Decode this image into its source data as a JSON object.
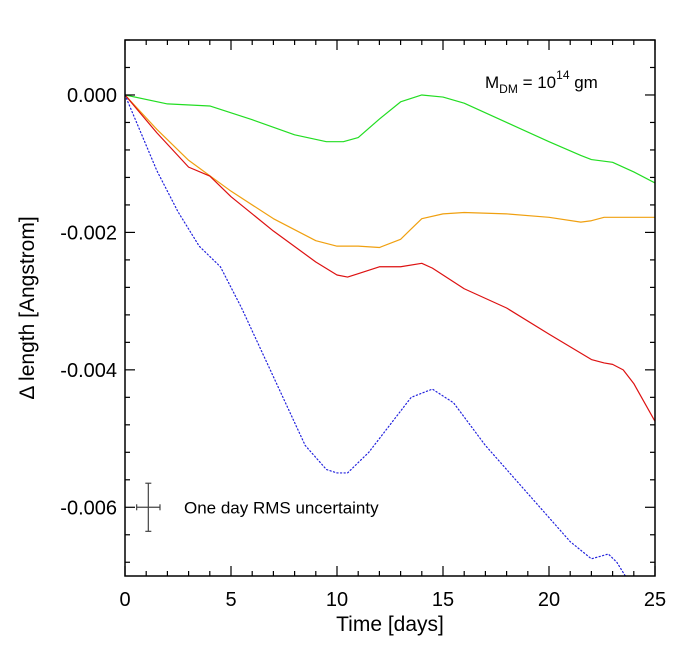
{
  "chart_data": {
    "type": "line",
    "xlabel": "Time [days]",
    "ylabel": "Δ length [Angstrom]",
    "xlim": [
      0,
      25
    ],
    "ylim": [
      -0.007,
      0.0008
    ],
    "x_ticks": [
      0,
      5,
      10,
      15,
      20,
      25
    ],
    "x_tick_labels": [
      "0",
      "5",
      "10",
      "15",
      "20",
      "25"
    ],
    "y_ticks": [
      0.0,
      -0.002,
      -0.004,
      -0.006
    ],
    "y_tick_labels": [
      "0.000",
      "-0.002",
      "-0.004",
      "-0.006"
    ],
    "x_minor_step": 1,
    "y_minor_step": 0.0004,
    "grid": false,
    "legend": "none",
    "mass_annotation": {
      "symbol": "M",
      "subscript": "DM",
      "equals": " = 10",
      "exponent": "14",
      "unit": " gm"
    },
    "error_bar_label": "One day RMS uncertainty",
    "error_bar": {
      "x": 1.1,
      "y": -0.006,
      "x_half_width": 0.55,
      "y_half_width": 0.00035
    },
    "series": [
      {
        "color": "#22dd22",
        "style": "solid",
        "points": [
          [
            0,
            0.0
          ],
          [
            2,
            -0.00013
          ],
          [
            4,
            -0.00016
          ],
          [
            6,
            -0.00036
          ],
          [
            8,
            -0.00058
          ],
          [
            9.5,
            -0.00068
          ],
          [
            10.3,
            -0.00068
          ],
          [
            11,
            -0.00062
          ],
          [
            12,
            -0.00035
          ],
          [
            13,
            -0.0001
          ],
          [
            14,
            0.0
          ],
          [
            15,
            -3e-05
          ],
          [
            16,
            -0.00012
          ],
          [
            18,
            -0.0004
          ],
          [
            20,
            -0.00068
          ],
          [
            21.5,
            -0.00088
          ],
          [
            22,
            -0.00094
          ],
          [
            23,
            -0.00098
          ],
          [
            24,
            -0.00112
          ],
          [
            25,
            -0.00128
          ]
        ]
      },
      {
        "color": "#f0a010",
        "style": "solid",
        "points": [
          [
            0,
            0.0
          ],
          [
            1.5,
            -0.0005
          ],
          [
            3,
            -0.00095
          ],
          [
            5,
            -0.0014
          ],
          [
            7,
            -0.0018
          ],
          [
            9,
            -0.00212
          ],
          [
            10,
            -0.0022
          ],
          [
            11,
            -0.0022
          ],
          [
            12,
            -0.00222
          ],
          [
            13,
            -0.0021
          ],
          [
            13.5,
            -0.00195
          ],
          [
            14,
            -0.0018
          ],
          [
            15,
            -0.00173
          ],
          [
            16,
            -0.00171
          ],
          [
            18,
            -0.00173
          ],
          [
            20,
            -0.00178
          ],
          [
            21.5,
            -0.00185
          ],
          [
            22,
            -0.00183
          ],
          [
            22.6,
            -0.00178
          ],
          [
            23,
            -0.00178
          ],
          [
            25,
            -0.00178
          ]
        ]
      },
      {
        "color": "#dd1111",
        "style": "solid",
        "points": [
          [
            0,
            0.0
          ],
          [
            1.5,
            -0.00055
          ],
          [
            3,
            -0.00105
          ],
          [
            4,
            -0.00118
          ],
          [
            5,
            -0.00148
          ],
          [
            7,
            -0.00198
          ],
          [
            9,
            -0.00243
          ],
          [
            10,
            -0.00262
          ],
          [
            10.5,
            -0.00265
          ],
          [
            11,
            -0.0026
          ],
          [
            12,
            -0.0025
          ],
          [
            13,
            -0.0025
          ],
          [
            14,
            -0.00245
          ],
          [
            14.5,
            -0.00252
          ],
          [
            16,
            -0.00282
          ],
          [
            18,
            -0.0031
          ],
          [
            20,
            -0.00348
          ],
          [
            22,
            -0.00385
          ],
          [
            22.6,
            -0.0039
          ],
          [
            23,
            -0.00392
          ],
          [
            23.5,
            -0.004
          ],
          [
            24,
            -0.0042
          ],
          [
            25,
            -0.00475
          ]
        ]
      },
      {
        "color": "#2222dd",
        "style": "dotted",
        "points": [
          [
            0,
            0.0
          ],
          [
            1.5,
            -0.0011
          ],
          [
            2.5,
            -0.0017
          ],
          [
            3.5,
            -0.0022
          ],
          [
            4.5,
            -0.0025
          ],
          [
            5.5,
            -0.0031
          ],
          [
            7,
            -0.0041
          ],
          [
            8.5,
            -0.0051
          ],
          [
            9.5,
            -0.00545
          ],
          [
            10,
            -0.0055
          ],
          [
            10.5,
            -0.0055
          ],
          [
            11.5,
            -0.0052
          ],
          [
            12.5,
            -0.0048
          ],
          [
            13.5,
            -0.0044
          ],
          [
            14.5,
            -0.00428
          ],
          [
            15.5,
            -0.00448
          ],
          [
            17,
            -0.0051
          ],
          [
            19,
            -0.0058
          ],
          [
            21,
            -0.0065
          ],
          [
            22,
            -0.00675
          ],
          [
            22.8,
            -0.00668
          ],
          [
            23.2,
            -0.0068
          ],
          [
            23.6,
            -0.007
          ]
        ]
      }
    ]
  }
}
